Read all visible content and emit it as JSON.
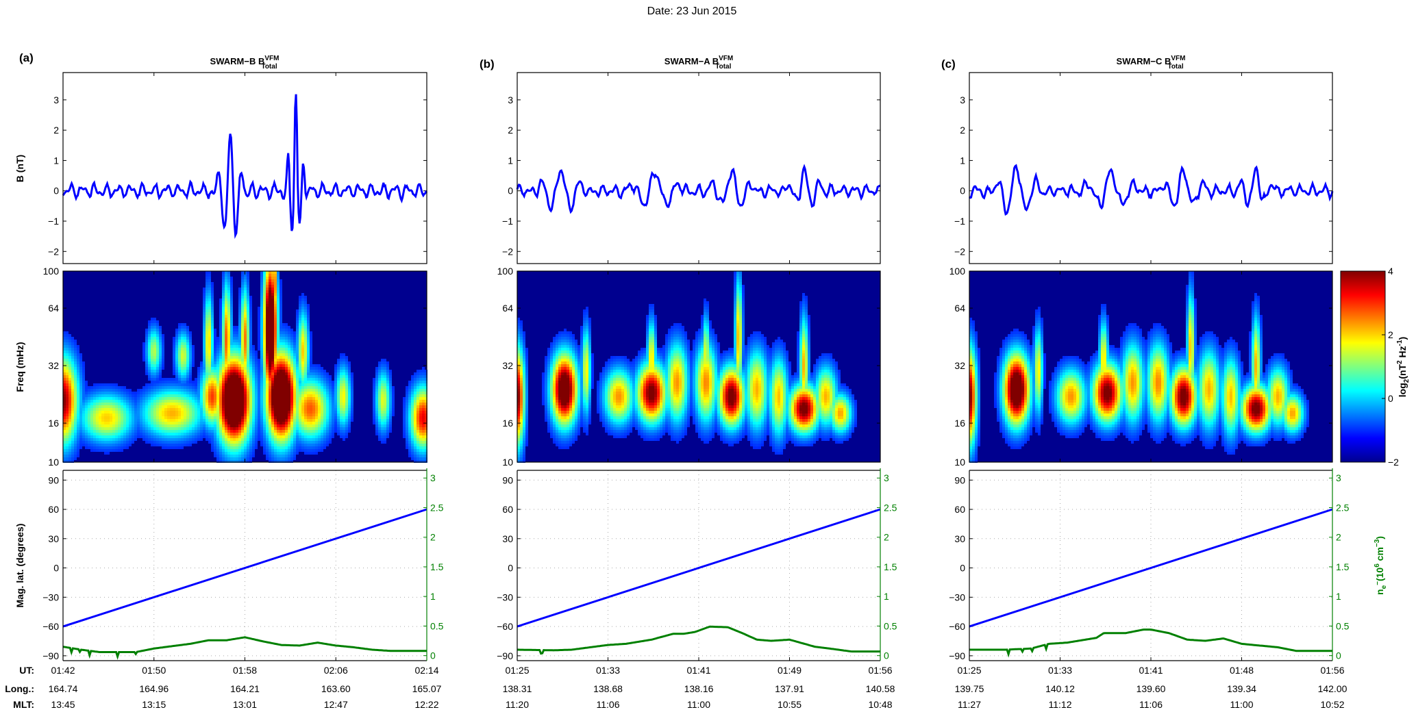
{
  "figure_title": "Date: 23 Jun 2015",
  "row_labels": {
    "ut": "UT:",
    "long": "Long.:",
    "mlt": "MLT:"
  },
  "colorbar": {
    "label": "log2(nT^2 Hz^-1)",
    "label_parts": {
      "base": "log",
      "sub": "2",
      "open": "(nT",
      "sup1": "2",
      "mid": " Hz",
      "sup2": "-1",
      "close": ")"
    },
    "range": [
      -2,
      4
    ],
    "ticks": [
      "4",
      "2",
      "0",
      "−2"
    ],
    "tick_values": [
      4,
      2,
      0,
      -2
    ],
    "colormap": "jet"
  },
  "chart_data": [
    {
      "type": "line",
      "panel_label": "(a)",
      "title": "SWARM-B B_Total^VFM",
      "title_parts": {
        "main": "SWARM−B B",
        "sup": "VFM",
        "sub": "Total"
      },
      "ylabel": "B (nT)",
      "ylim": [
        -2.4,
        3.9
      ],
      "yticks": [
        3,
        2,
        1,
        0,
        -1,
        -2
      ],
      "ytick_labels": [
        "3",
        "2",
        "1",
        "0",
        "−1",
        "−2"
      ],
      "series": [
        {
          "name": "B_total",
          "color": "#0000ff",
          "bursts": [
            {
              "t": 0.46,
              "amp": 2.0,
              "width": 0.03,
              "min": -1.9
            },
            {
              "t": 0.64,
              "amp": 3.4,
              "width": 0.02,
              "min": -1.7
            }
          ],
          "background_amp": 0.3,
          "seed": 11
        }
      ]
    },
    {
      "type": "line",
      "panel_label": "(b)",
      "title": "SWARM-A B_Total^VFM",
      "title_parts": {
        "main": "SWARM−A B",
        "sup": "VFM",
        "sub": "Total"
      },
      "ylabel": "",
      "ylim": [
        -2.4,
        3.9
      ],
      "yticks": [
        3,
        2,
        1,
        0,
        -1,
        -2
      ],
      "ytick_labels": [
        "3",
        "2",
        "1",
        "0",
        "−1",
        "−2"
      ],
      "series": [
        {
          "name": "B_total",
          "color": "#0000ff",
          "bursts": [
            {
              "t": 0.12,
              "amp": 0.75,
              "width": 0.05,
              "min": -0.8
            },
            {
              "t": 0.38,
              "amp": 0.65,
              "width": 0.06,
              "min": -0.6
            },
            {
              "t": 0.59,
              "amp": 0.7,
              "width": 0.05,
              "min": -0.6
            },
            {
              "t": 0.79,
              "amp": 0.75,
              "width": 0.04,
              "min": -0.5
            }
          ],
          "background_amp": 0.25,
          "seed": 23
        }
      ]
    },
    {
      "type": "line",
      "panel_label": "(c)",
      "title": "SWARM-C B_Total^VFM",
      "title_parts": {
        "main": "SWARM−C B",
        "sup": "VFM",
        "sub": "Total"
      },
      "ylabel": "",
      "ylim": [
        -2.4,
        3.9
      ],
      "yticks": [
        3,
        2,
        1,
        0,
        -1,
        -2
      ],
      "ytick_labels": [
        "3",
        "2",
        "1",
        "0",
        "−1",
        "−2"
      ],
      "series": [
        {
          "name": "B_total",
          "color": "#0000ff",
          "bursts": [
            {
              "t": 0.13,
              "amp": 0.85,
              "width": 0.05,
              "min": -0.9
            },
            {
              "t": 0.39,
              "amp": 0.65,
              "width": 0.06,
              "min": -0.6
            },
            {
              "t": 0.59,
              "amp": 0.7,
              "width": 0.05,
              "min": -0.6
            },
            {
              "t": 0.79,
              "amp": 0.8,
              "width": 0.04,
              "min": -0.5
            }
          ],
          "background_amp": 0.25,
          "seed": 37
        }
      ]
    },
    {
      "type": "heatmap",
      "panel_label": "(a)",
      "ylabel": "Freq (mHz)",
      "yscale": "log",
      "ylim": [
        10,
        100
      ],
      "yticks": [
        100,
        64,
        32,
        16,
        10
      ],
      "ytick_labels": [
        "100",
        "64",
        "32",
        "16",
        "10"
      ],
      "blobs": [
        {
          "t": 0.0,
          "f": 21,
          "power": 2.2,
          "tw": 0.04,
          "fw": 0.22
        },
        {
          "t": 0.12,
          "f": 17,
          "power": 0.0,
          "tw": 0.07,
          "fw": 0.12
        },
        {
          "t": 0.3,
          "f": 18,
          "power": 0.2,
          "tw": 0.08,
          "fw": 0.12
        },
        {
          "t": 0.25,
          "f": 38,
          "power": -0.8,
          "tw": 0.02,
          "fw": 0.12
        },
        {
          "t": 0.33,
          "f": 36,
          "power": -0.6,
          "tw": 0.02,
          "fw": 0.12
        },
        {
          "t": 0.41,
          "f": 22,
          "power": 1.0,
          "tw": 0.03,
          "fw": 0.15
        },
        {
          "t": 0.4,
          "f": 42,
          "power": 0.0,
          "tw": 0.012,
          "fw": 0.25
        },
        {
          "t": 0.47,
          "f": 21,
          "power": 5.0,
          "tw": 0.045,
          "fw": 0.22
        },
        {
          "t": 0.45,
          "f": 44,
          "power": 0.8,
          "tw": 0.012,
          "fw": 0.28
        },
        {
          "t": 0.5,
          "f": 44,
          "power": 0.6,
          "tw": 0.012,
          "fw": 0.26
        },
        {
          "t": 0.6,
          "f": 22,
          "power": 5.0,
          "tw": 0.04,
          "fw": 0.22
        },
        {
          "t": 0.57,
          "f": 50,
          "power": 4.5,
          "tw": 0.018,
          "fw": 0.35
        },
        {
          "t": 0.58,
          "f": 85,
          "power": 1.5,
          "tw": 0.008,
          "fw": 0.2
        },
        {
          "t": 0.66,
          "f": 38,
          "power": 0.0,
          "tw": 0.015,
          "fw": 0.2
        },
        {
          "t": 0.68,
          "f": 19,
          "power": 0.8,
          "tw": 0.05,
          "fw": 0.15
        },
        {
          "t": 0.77,
          "f": 22,
          "power": -0.3,
          "tw": 0.02,
          "fw": 0.15
        },
        {
          "t": 0.88,
          "f": 21,
          "power": -0.5,
          "tw": 0.02,
          "fw": 0.15
        },
        {
          "t": 0.99,
          "f": 17,
          "power": 1.5,
          "tw": 0.035,
          "fw": 0.16
        }
      ]
    },
    {
      "type": "heatmap",
      "panel_label": "(b)",
      "ylabel": "",
      "yscale": "log",
      "ylim": [
        10,
        100
      ],
      "yticks": [
        100,
        64,
        32,
        16,
        10
      ],
      "ytick_labels": [
        "100",
        "64",
        "32",
        "16",
        "10"
      ],
      "blobs": [
        {
          "t": 0.0,
          "f": 22,
          "power": 2.3,
          "tw": 0.02,
          "fw": 0.25
        },
        {
          "t": 0.13,
          "f": 24,
          "power": 3.5,
          "tw": 0.035,
          "fw": 0.18
        },
        {
          "t": 0.19,
          "f": 30,
          "power": -0.2,
          "tw": 0.012,
          "fw": 0.22
        },
        {
          "t": 0.28,
          "f": 22,
          "power": 0.4,
          "tw": 0.04,
          "fw": 0.14
        },
        {
          "t": 0.37,
          "f": 23,
          "power": 2.5,
          "tw": 0.04,
          "fw": 0.15
        },
        {
          "t": 0.37,
          "f": 34,
          "power": 0.0,
          "tw": 0.012,
          "fw": 0.2
        },
        {
          "t": 0.44,
          "f": 26,
          "power": 0.4,
          "tw": 0.03,
          "fw": 0.2
        },
        {
          "t": 0.52,
          "f": 26,
          "power": 0.5,
          "tw": 0.03,
          "fw": 0.2
        },
        {
          "t": 0.52,
          "f": 36,
          "power": -0.3,
          "tw": 0.01,
          "fw": 0.2
        },
        {
          "t": 0.59,
          "f": 22,
          "power": 2.6,
          "tw": 0.035,
          "fw": 0.15
        },
        {
          "t": 0.61,
          "f": 45,
          "power": 0.3,
          "tw": 0.01,
          "fw": 0.3
        },
        {
          "t": 0.66,
          "f": 24,
          "power": 0.2,
          "tw": 0.03,
          "fw": 0.2
        },
        {
          "t": 0.72,
          "f": 22,
          "power": 0.1,
          "tw": 0.025,
          "fw": 0.2
        },
        {
          "t": 0.79,
          "f": 19,
          "power": 2.5,
          "tw": 0.04,
          "fw": 0.12
        },
        {
          "t": 0.79,
          "f": 32,
          "power": 0.2,
          "tw": 0.012,
          "fw": 0.25
        },
        {
          "t": 0.85,
          "f": 22,
          "power": 0.2,
          "tw": 0.03,
          "fw": 0.15
        },
        {
          "t": 0.89,
          "f": 18,
          "power": 0.3,
          "tw": 0.03,
          "fw": 0.1
        }
      ]
    },
    {
      "type": "heatmap",
      "panel_label": "(c)",
      "ylabel": "",
      "yscale": "log",
      "ylim": [
        10,
        100
      ],
      "yticks": [
        100,
        64,
        32,
        16,
        10
      ],
      "ytick_labels": [
        "100",
        "64",
        "32",
        "16",
        "10"
      ],
      "blobs": [
        {
          "t": 0.0,
          "f": 22,
          "power": 2.3,
          "tw": 0.02,
          "fw": 0.25
        },
        {
          "t": 0.13,
          "f": 24,
          "power": 3.7,
          "tw": 0.035,
          "fw": 0.18
        },
        {
          "t": 0.19,
          "f": 30,
          "power": -0.2,
          "tw": 0.012,
          "fw": 0.22
        },
        {
          "t": 0.28,
          "f": 22,
          "power": 0.4,
          "tw": 0.04,
          "fw": 0.14
        },
        {
          "t": 0.38,
          "f": 23,
          "power": 2.5,
          "tw": 0.04,
          "fw": 0.15
        },
        {
          "t": 0.37,
          "f": 34,
          "power": 0.0,
          "tw": 0.012,
          "fw": 0.2
        },
        {
          "t": 0.45,
          "f": 26,
          "power": 0.4,
          "tw": 0.03,
          "fw": 0.2
        },
        {
          "t": 0.52,
          "f": 26,
          "power": 0.5,
          "tw": 0.03,
          "fw": 0.2
        },
        {
          "t": 0.59,
          "f": 22,
          "power": 2.6,
          "tw": 0.035,
          "fw": 0.15
        },
        {
          "t": 0.61,
          "f": 40,
          "power": 0.2,
          "tw": 0.01,
          "fw": 0.28
        },
        {
          "t": 0.66,
          "f": 24,
          "power": 0.2,
          "tw": 0.03,
          "fw": 0.2
        },
        {
          "t": 0.72,
          "f": 22,
          "power": 0.1,
          "tw": 0.025,
          "fw": 0.2
        },
        {
          "t": 0.79,
          "f": 19,
          "power": 2.5,
          "tw": 0.04,
          "fw": 0.12
        },
        {
          "t": 0.79,
          "f": 32,
          "power": 0.2,
          "tw": 0.012,
          "fw": 0.25
        },
        {
          "t": 0.85,
          "f": 22,
          "power": 0.2,
          "tw": 0.03,
          "fw": 0.15
        },
        {
          "t": 0.89,
          "f": 18,
          "power": 0.3,
          "tw": 0.03,
          "fw": 0.1
        }
      ]
    },
    {
      "type": "line",
      "panel_label": "(a)",
      "ylabel": "Mag. lat. (degrees)",
      "ylim": [
        -95,
        100
      ],
      "yticks": [
        90,
        60,
        30,
        0,
        -30,
        -60,
        -90
      ],
      "ytick_labels": [
        "90",
        "60",
        "30",
        "0",
        "−30",
        "−60",
        "−90"
      ],
      "y2label": "n_e- (10^6 cm^-3)",
      "y2lim": [
        -0.085,
        3.13
      ],
      "y2ticks": [
        3,
        2.5,
        2,
        1.5,
        1,
        0.5,
        0
      ],
      "y2tick_labels": [
        "3",
        "2.5",
        "2",
        "1.5",
        "1",
        "0.5",
        "0"
      ],
      "grid": true,
      "xtick_labels": {
        "ut": [
          "01:42",
          "01:50",
          "01:58",
          "02:06",
          "02:14"
        ],
        "long": [
          "164.74",
          "164.96",
          "164.21",
          "163.60",
          "165.07"
        ],
        "mlt": [
          "13:45",
          "13:15",
          "13:01",
          "12:47",
          "12:22"
        ]
      },
      "series": [
        {
          "name": "Mag. lat.",
          "color": "#0000ff",
          "axis": "left",
          "x": [
            0,
            1
          ],
          "y": [
            -60,
            60
          ]
        },
        {
          "name": "n_e",
          "color": "#008000",
          "axis": "right",
          "x": [
            0,
            0.05,
            0.1,
            0.2,
            0.25,
            0.35,
            0.4,
            0.45,
            0.5,
            0.55,
            0.6,
            0.65,
            0.7,
            0.75,
            0.8,
            0.85,
            0.9,
            0.95,
            1.0
          ],
          "y": [
            0.15,
            0.1,
            0.06,
            0.06,
            0.12,
            0.2,
            0.26,
            0.26,
            0.31,
            0.24,
            0.18,
            0.17,
            0.22,
            0.17,
            0.14,
            0.1,
            0.08,
            0.08,
            0.08
          ]
        }
      ]
    },
    {
      "type": "line",
      "panel_label": "(b)",
      "ylabel": "",
      "ylim": [
        -95,
        100
      ],
      "yticks": [
        90,
        60,
        30,
        0,
        -30,
        -60,
        -90
      ],
      "ytick_labels": [
        "90",
        "60",
        "30",
        "0",
        "−30",
        "−60",
        "−90"
      ],
      "y2lim": [
        -0.085,
        3.13
      ],
      "y2ticks": [
        3,
        2.5,
        2,
        1.5,
        1,
        0.5,
        0
      ],
      "y2tick_labels": [
        "3",
        "2.5",
        "2",
        "1.5",
        "1",
        "0.5",
        "0"
      ],
      "grid": true,
      "xtick_labels": {
        "ut": [
          "01:25",
          "01:33",
          "01:41",
          "01:49",
          "01:56"
        ],
        "long": [
          "138.31",
          "138.68",
          "138.16",
          "137.91",
          "140.58"
        ],
        "mlt": [
          "11:20",
          "11:06",
          "11:00",
          "10:55",
          "10:48"
        ]
      },
      "series": [
        {
          "name": "Mag. lat.",
          "color": "#0000ff",
          "axis": "left",
          "x": [
            0,
            1
          ],
          "y": [
            -60,
            60
          ]
        },
        {
          "name": "n_e",
          "color": "#008000",
          "axis": "right",
          "x": [
            0,
            0.1,
            0.15,
            0.25,
            0.3,
            0.37,
            0.43,
            0.46,
            0.49,
            0.53,
            0.58,
            0.62,
            0.66,
            0.7,
            0.75,
            0.82,
            0.86,
            0.92,
            1.0
          ],
          "y": [
            0.1,
            0.09,
            0.1,
            0.18,
            0.2,
            0.27,
            0.37,
            0.37,
            0.4,
            0.49,
            0.48,
            0.38,
            0.27,
            0.25,
            0.27,
            0.15,
            0.12,
            0.07,
            0.07
          ]
        }
      ]
    },
    {
      "type": "line",
      "panel_label": "(c)",
      "ylabel": "",
      "ylim": [
        -95,
        100
      ],
      "yticks": [
        90,
        60,
        30,
        0,
        -30,
        -60,
        -90
      ],
      "ytick_labels": [
        "90",
        "60",
        "30",
        "0",
        "−30",
        "−60",
        "−90"
      ],
      "y2label": "n_e- (10^6 cm^-3)",
      "y2lim": [
        -0.085,
        3.13
      ],
      "y2ticks": [
        3,
        2.5,
        2,
        1.5,
        1,
        0.5,
        0
      ],
      "y2tick_labels": [
        "3",
        "2.5",
        "2",
        "1.5",
        "1",
        "0.5",
        "0"
      ],
      "grid": true,
      "xtick_labels": {
        "ut": [
          "01:25",
          "01:33",
          "01:41",
          "01:48",
          "01:56"
        ],
        "long": [
          "139.75",
          "140.12",
          "139.60",
          "139.34",
          "142.00"
        ],
        "mlt": [
          "11:27",
          "11:12",
          "11:06",
          "11:00",
          "10:52"
        ]
      },
      "series": [
        {
          "name": "Mag. lat.",
          "color": "#0000ff",
          "axis": "left",
          "x": [
            0,
            1
          ],
          "y": [
            -60,
            60
          ]
        },
        {
          "name": "n_e",
          "color": "#008000",
          "axis": "right",
          "x": [
            0,
            0.1,
            0.17,
            0.22,
            0.27,
            0.3,
            0.35,
            0.37,
            0.43,
            0.48,
            0.5,
            0.55,
            0.6,
            0.65,
            0.7,
            0.75,
            0.85,
            0.9,
            1.0
          ],
          "y": [
            0.1,
            0.1,
            0.12,
            0.2,
            0.22,
            0.25,
            0.3,
            0.38,
            0.38,
            0.44,
            0.44,
            0.38,
            0.27,
            0.25,
            0.29,
            0.2,
            0.14,
            0.08,
            0.08
          ]
        }
      ]
    }
  ]
}
